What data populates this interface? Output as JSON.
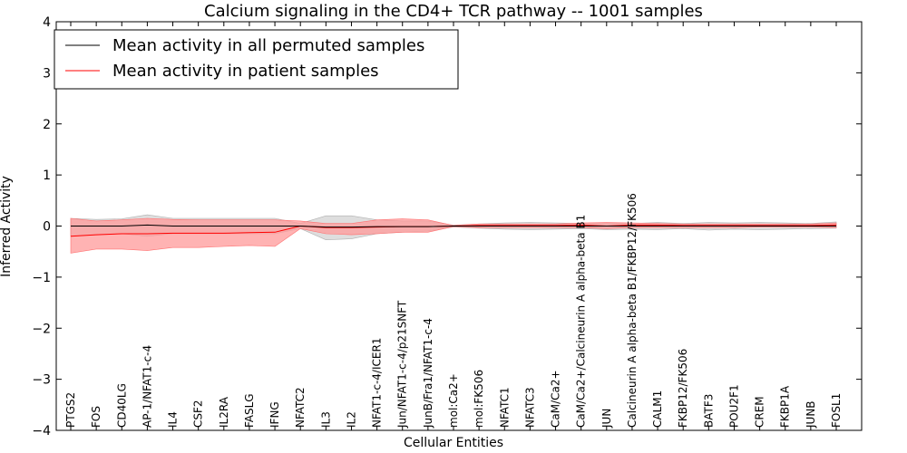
{
  "chart_data": {
    "type": "line",
    "title": "Calcium signaling in the CD4+ TCR pathway -- 1001 samples",
    "xlabel": "Cellular Entities",
    "ylabel": "Inferred Activity",
    "ylim": [
      -4,
      4
    ],
    "yticks": [
      -4,
      -3,
      -2,
      -1,
      0,
      1,
      2,
      3,
      4
    ],
    "ytick_labels": [
      "−4",
      "−3",
      "−2",
      "−1",
      "0",
      "1",
      "2",
      "3",
      "4"
    ],
    "legend_position": "top-left",
    "categories": [
      "PTGS2",
      "FOS",
      "CD40LG",
      "AP-1/NFAT1-c-4",
      "IL4",
      "CSF2",
      "IL2RA",
      "FASLG",
      "IFNG",
      "NFATC2",
      "IL3",
      "IL2",
      "NFAT1-c-4/ICER1",
      "Jun/NFAT1-c-4/p21SNFT",
      "JunB/Fra1/NFAT1-c-4",
      "mol:Ca2+",
      "mol:FK506",
      "NFATC1",
      "NFATC3",
      "CaM/Ca2+",
      "CaM/Ca2+/Calcineurin A alpha-beta B1",
      "JUN",
      "Calcineurin A alpha-beta B1/FKBP12/FK506",
      "CALM1",
      "FKBP12/FK506",
      "BATF3",
      "POU2F1",
      "CREM",
      "FKBP1A",
      "JUNB",
      "FOSL1"
    ],
    "series": [
      {
        "name": "Mean activity in all permuted samples",
        "color": "#000000",
        "band_color": "#c8c8c8",
        "values": [
          0.0,
          0.0,
          0.0,
          0.02,
          0.0,
          0.0,
          0.0,
          0.0,
          0.0,
          0.0,
          -0.02,
          -0.02,
          -0.01,
          -0.01,
          -0.01,
          0.0,
          0.0,
          0.0,
          0.0,
          0.0,
          0.0,
          0.0,
          0.0,
          0.0,
          0.0,
          0.0,
          0.0,
          0.0,
          0.0,
          0.0,
          0.0
        ],
        "lower": [
          -0.2,
          -0.17,
          -0.15,
          -0.2,
          -0.15,
          -0.15,
          -0.15,
          -0.15,
          -0.15,
          -0.05,
          -0.27,
          -0.25,
          -0.15,
          -0.12,
          -0.1,
          -0.02,
          -0.04,
          -0.06,
          -0.07,
          -0.06,
          -0.05,
          -0.07,
          -0.06,
          -0.07,
          -0.05,
          -0.08,
          -0.06,
          -0.07,
          -0.06,
          -0.05,
          -0.04
        ],
        "upper": [
          0.15,
          0.13,
          0.14,
          0.22,
          0.15,
          0.15,
          0.15,
          0.15,
          0.15,
          0.05,
          0.2,
          0.2,
          0.12,
          0.1,
          0.1,
          0.02,
          0.04,
          0.06,
          0.07,
          0.06,
          0.05,
          0.06,
          0.05,
          0.07,
          0.05,
          0.07,
          0.06,
          0.07,
          0.06,
          0.05,
          0.08
        ]
      },
      {
        "name": "Mean activity in patient samples",
        "color": "#ff0000",
        "band_color": "#ff9a9a",
        "values": [
          -0.2,
          -0.17,
          -0.15,
          -0.15,
          -0.14,
          -0.14,
          -0.14,
          -0.13,
          -0.12,
          0.0,
          -0.03,
          -0.03,
          -0.02,
          -0.01,
          -0.01,
          0.0,
          0.01,
          0.01,
          0.01,
          0.01,
          0.02,
          0.0,
          0.02,
          0.02,
          0.01,
          0.01,
          0.01,
          0.01,
          0.01,
          0.01,
          0.02
        ],
        "lower": [
          -0.53,
          -0.45,
          -0.45,
          -0.48,
          -0.42,
          -0.42,
          -0.4,
          -0.38,
          -0.4,
          -0.05,
          -0.15,
          -0.17,
          -0.15,
          -0.12,
          -0.12,
          -0.01,
          -0.03,
          -0.03,
          -0.03,
          -0.03,
          -0.03,
          -0.05,
          -0.03,
          -0.03,
          -0.03,
          -0.03,
          -0.03,
          -0.02,
          -0.02,
          -0.02,
          -0.03
        ],
        "upper": [
          0.15,
          0.1,
          0.12,
          0.15,
          0.13,
          0.12,
          0.12,
          0.12,
          0.12,
          0.1,
          0.05,
          0.05,
          0.12,
          0.14,
          0.12,
          0.01,
          0.04,
          0.04,
          0.04,
          0.04,
          0.06,
          0.07,
          0.06,
          0.05,
          0.04,
          0.04,
          0.04,
          0.04,
          0.04,
          0.04,
          0.06
        ]
      }
    ]
  }
}
